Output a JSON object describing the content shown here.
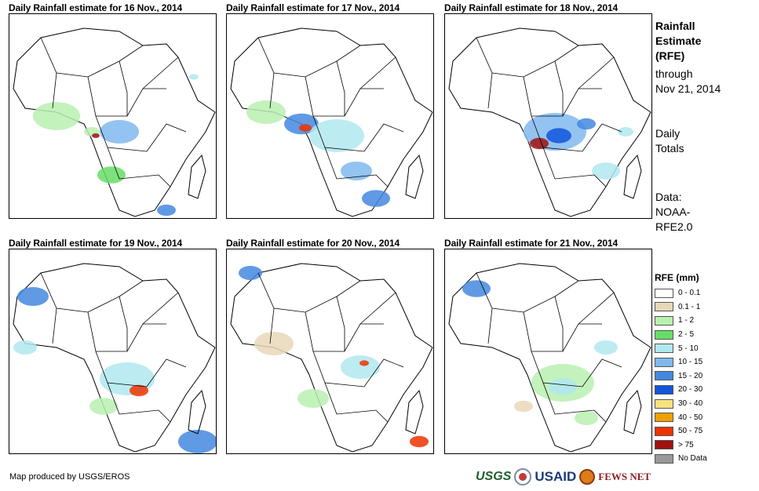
{
  "panels": [
    {
      "title": "Daily Rainfall estimate for 16 Nov., 2014"
    },
    {
      "title": "Daily Rainfall estimate for 17 Nov., 2014"
    },
    {
      "title": "Daily Rainfall estimate for 18 Nov., 2014"
    },
    {
      "title": "Daily Rainfall estimate for 19 Nov., 2014"
    },
    {
      "title": "Daily Rainfall estimate for 20 Nov., 2014"
    },
    {
      "title": "Daily Rainfall estimate for 21 Nov., 2014"
    }
  ],
  "side": {
    "title_lines": [
      "Rainfall",
      "Estimate",
      "(RFE)"
    ],
    "through_lines": [
      "through",
      "Nov 21, 2014"
    ],
    "totals_lines": [
      "Daily",
      "Totals"
    ],
    "data_lines": [
      "Data:",
      "NOAA-",
      "RFE2.0"
    ]
  },
  "legend": {
    "title": "RFE (mm)",
    "items": [
      {
        "label": "0 - 0.1",
        "color": "#ffffff"
      },
      {
        "label": "0.1 - 1",
        "color": "#e8d8b8"
      },
      {
        "label": "1 - 2",
        "color": "#b8f0b0"
      },
      {
        "label": "2 - 5",
        "color": "#66dd66"
      },
      {
        "label": "5 - 10",
        "color": "#b0e8f0"
      },
      {
        "label": "10 - 15",
        "color": "#80b8ee"
      },
      {
        "label": "15 - 20",
        "color": "#4488e0"
      },
      {
        "label": "20 - 30",
        "color": "#1155dd"
      },
      {
        "label": "30 - 40",
        "color": "#f8e080"
      },
      {
        "label": "40 - 50",
        "color": "#f0a000"
      },
      {
        "label": "50 - 75",
        "color": "#ee3300"
      },
      {
        "label": "> 75",
        "color": "#a01010"
      },
      {
        "label": "No Data",
        "color": "#999999"
      }
    ]
  },
  "credit": "Map produced by USGS/EROS",
  "logos": {
    "usgs": "USGS",
    "usaid": "USAID",
    "fewsnet": "FEWS NET"
  }
}
